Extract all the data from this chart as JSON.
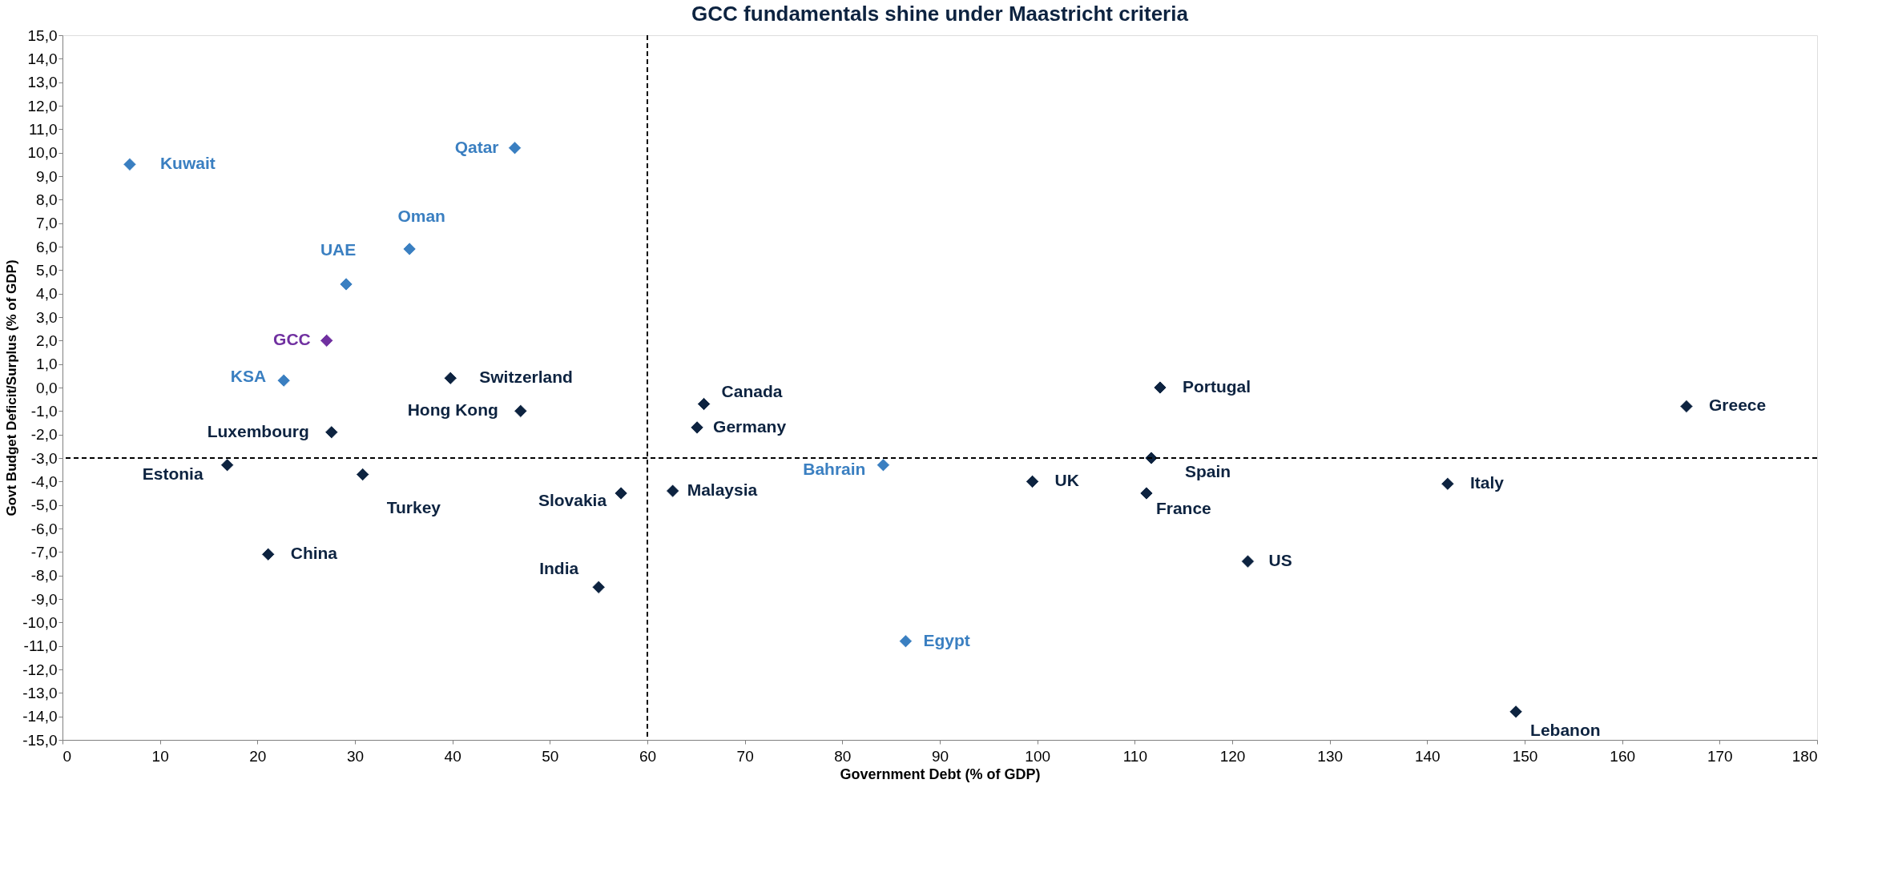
{
  "chart_data": {
    "type": "scatter",
    "title": "GCC fundamentals shine under Maastricht criteria",
    "xlabel": "Government Debt (% of GDP)",
    "ylabel": "Govt Budget Deficit/Surplus (% of GDP)",
    "xlim": [
      0,
      180
    ],
    "xticks": [
      0,
      10,
      20,
      30,
      40,
      50,
      60,
      70,
      80,
      90,
      100,
      110,
      120,
      130,
      140,
      150,
      160,
      170,
      180
    ],
    "ylim": [
      -15,
      15
    ],
    "yticks": [
      {
        "value": -15,
        "label": "-15,0"
      },
      {
        "value": -14,
        "label": "-14,0"
      },
      {
        "value": -13,
        "label": "-13,0"
      },
      {
        "value": -12,
        "label": "-12,0"
      },
      {
        "value": -11,
        "label": "-11,0"
      },
      {
        "value": -10,
        "label": "-10,0"
      },
      {
        "value": -9,
        "label": "-9,0"
      },
      {
        "value": -8,
        "label": "-8,0"
      },
      {
        "value": -7,
        "label": "-7,0"
      },
      {
        "value": -6,
        "label": "-6,0"
      },
      {
        "value": -5,
        "label": "-5,0"
      },
      {
        "value": -4,
        "label": "-4,0"
      },
      {
        "value": -3,
        "label": "-3,0"
      },
      {
        "value": -2,
        "label": "-2,0"
      },
      {
        "value": -1,
        "label": "-1,0"
      },
      {
        "value": 0,
        "label": "0,0"
      },
      {
        "value": 1,
        "label": "1,0"
      },
      {
        "value": 2,
        "label": "2,0"
      },
      {
        "value": 3,
        "label": "3,0"
      },
      {
        "value": 4,
        "label": "4,0"
      },
      {
        "value": 5,
        "label": "5,0"
      },
      {
        "value": 6,
        "label": "6,0"
      },
      {
        "value": 7,
        "label": "7,0"
      },
      {
        "value": 8,
        "label": "8,0"
      },
      {
        "value": 9,
        "label": "9,0"
      },
      {
        "value": 10,
        "label": "10,0"
      },
      {
        "value": 11,
        "label": "11,0"
      },
      {
        "value": 12,
        "label": "12,0"
      },
      {
        "value": 13,
        "label": "13,0"
      },
      {
        "value": 14,
        "label": "14,0"
      },
      {
        "value": 15,
        "label": "15,0"
      }
    ],
    "marker": "diamond",
    "grid": false,
    "legend": false,
    "ref_lines": [
      {
        "axis": "x",
        "value": 60,
        "line_style": "dashed",
        "color": "#000000"
      },
      {
        "axis": "y",
        "value": -3,
        "line_style": "dashed",
        "color": "#000000"
      }
    ],
    "series": [
      {
        "name": "Kuwait",
        "color": "#3a7fc1",
        "x": [
          6.9
        ],
        "values": [
          9.5
        ]
      },
      {
        "name": "Qatar",
        "color": "#3a7fc1",
        "x": [
          46.4
        ],
        "values": [
          10.2
        ]
      },
      {
        "name": "Oman",
        "color": "#3a7fc1",
        "x": [
          35.6
        ],
        "values": [
          5.9
        ]
      },
      {
        "name": "UAE",
        "color": "#3a7fc1",
        "x": [
          29.1
        ],
        "values": [
          4.4
        ]
      },
      {
        "name": "GCC",
        "color": "#7030a0",
        "x": [
          27.1
        ],
        "values": [
          2.0
        ]
      },
      {
        "name": "KSA",
        "color": "#3a7fc1",
        "x": [
          22.7
        ],
        "values": [
          0.3
        ]
      },
      {
        "name": "Switzerland",
        "color": "#0d2340",
        "x": [
          39.8
        ],
        "values": [
          0.4
        ]
      },
      {
        "name": "Hong Kong",
        "color": "#0d2340",
        "x": [
          47.0
        ],
        "values": [
          -1.0
        ]
      },
      {
        "name": "Luxembourg",
        "color": "#0d2340",
        "x": [
          27.6
        ],
        "values": [
          -1.9
        ]
      },
      {
        "name": "Estonia",
        "color": "#0d2340",
        "x": [
          16.9
        ],
        "values": [
          -3.3
        ]
      },
      {
        "name": "Turkey",
        "color": "#0d2340",
        "x": [
          30.8
        ],
        "values": [
          -3.7
        ]
      },
      {
        "name": "China",
        "color": "#0d2340",
        "x": [
          21.1
        ],
        "values": [
          -7.1
        ]
      },
      {
        "name": "Slovakia",
        "color": "#0d2340",
        "x": [
          57.3
        ],
        "values": [
          -4.5
        ]
      },
      {
        "name": "India",
        "color": "#0d2340",
        "x": [
          55.0
        ],
        "values": [
          -8.5
        ]
      },
      {
        "name": "Malaysia",
        "color": "#0d2340",
        "x": [
          62.6
        ],
        "values": [
          -4.4
        ]
      },
      {
        "name": "Canada",
        "color": "#0d2340",
        "x": [
          65.8
        ],
        "values": [
          -0.7
        ]
      },
      {
        "name": "Germany",
        "color": "#0d2340",
        "x": [
          65.1
        ],
        "values": [
          -1.7
        ]
      },
      {
        "name": "Bahrain",
        "color": "#3a7fc1",
        "x": [
          84.2
        ],
        "values": [
          -3.3
        ]
      },
      {
        "name": "Egypt",
        "color": "#3a7fc1",
        "x": [
          86.5
        ],
        "values": [
          -10.8
        ]
      },
      {
        "name": "UK",
        "color": "#0d2340",
        "x": [
          99.5
        ],
        "values": [
          -4.0
        ]
      },
      {
        "name": "Portugal",
        "color": "#0d2340",
        "x": [
          112.6
        ],
        "values": [
          0.0
        ]
      },
      {
        "name": "Spain",
        "color": "#0d2340",
        "x": [
          111.7
        ],
        "values": [
          -3.0
        ]
      },
      {
        "name": "France",
        "color": "#0d2340",
        "x": [
          111.2
        ],
        "values": [
          -4.5
        ]
      },
      {
        "name": "US",
        "color": "#0d2340",
        "x": [
          121.6
        ],
        "values": [
          -7.4
        ]
      },
      {
        "name": "Italy",
        "color": "#0d2340",
        "x": [
          142.1
        ],
        "values": [
          -4.1
        ]
      },
      {
        "name": "Greece",
        "color": "#0d2340",
        "x": [
          166.6
        ],
        "values": [
          -0.8
        ]
      },
      {
        "name": "Lebanon",
        "color": "#0d2340",
        "x": [
          149.1
        ],
        "values": [
          -13.8
        ]
      }
    ]
  }
}
